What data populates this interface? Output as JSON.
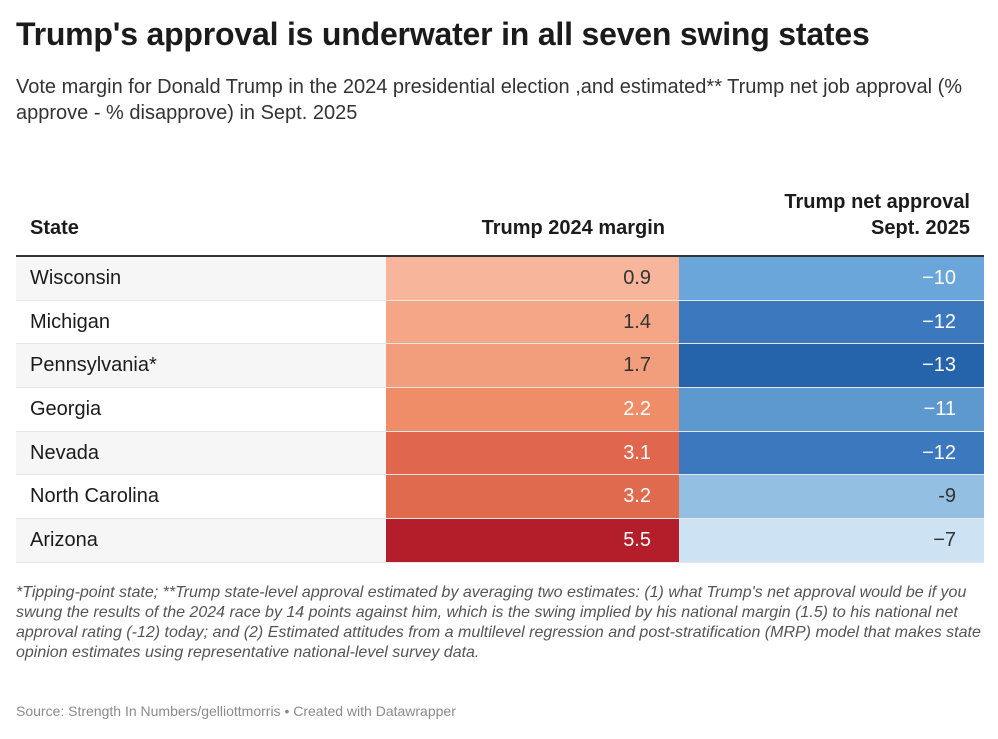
{
  "title": "Trump's approval is underwater in all seven swing states",
  "subtitle": "Vote margin for Donald Trump in the 2024 presidential election ,and estimated** Trump net job approval (% approve - % disapprove) in Sept. 2025",
  "chart_data": {
    "type": "table",
    "columns": [
      "State",
      "Trump 2024 margin",
      "Trump net approval Sept. 2025"
    ],
    "rows": [
      {
        "state": "Wisconsin",
        "margin": "0.9",
        "approval": "−10"
      },
      {
        "state": "Michigan",
        "margin": "1.4",
        "approval": "−12"
      },
      {
        "state": "Pennsylvania*",
        "margin": "1.7",
        "approval": "−13"
      },
      {
        "state": "Georgia",
        "margin": "2.2",
        "approval": "−11"
      },
      {
        "state": "Nevada",
        "margin": "3.1",
        "approval": "−12"
      },
      {
        "state": "North Carolina",
        "margin": "3.2",
        "approval": "-9"
      },
      {
        "state": "Arizona",
        "margin": "5.5",
        "approval": "−7"
      }
    ],
    "margin_values": [
      0.9,
      1.4,
      1.7,
      2.2,
      3.1,
      3.2,
      5.5
    ],
    "approval_values": [
      -10,
      -12,
      -13,
      -11,
      -12,
      -9,
      -7
    ],
    "colors": {
      "margin": [
        "#f7b69b",
        "#f4a686",
        "#f29e7d",
        "#ef8d68",
        "#e0664d",
        "#df6a4e",
        "#b41e2b"
      ],
      "margin_text": [
        "#333333",
        "#333333",
        "#333333",
        "#ffffff",
        "#ffffff",
        "#ffffff",
        "#ffffff"
      ],
      "approval": [
        "#6aa6d9",
        "#3b78bd",
        "#2563ab",
        "#5d98cf",
        "#3b78bd",
        "#93bfe3",
        "#cde2f2"
      ],
      "approval_text": [
        "#ffffff",
        "#ffffff",
        "#ffffff",
        "#ffffff",
        "#ffffff",
        "#333333",
        "#333333"
      ]
    }
  },
  "footnote": "*Tipping-point state; **Trump state-level approval estimated by averaging two estimates: (1) what Trump's net approval would be if you swung the results of the 2024 race by 14 points against him, which is the swing implied by his national margin (1.5) to his national net approval rating (-12) today; and (2) Estimated attitudes from a multilevel regression and post-stratification (MRP) model that makes state opinion estimates using representative national-level survey data.",
  "source": "Source: Strength In Numbers/gelliottmorris • Created with Datawrapper",
  "header": {
    "state": "State",
    "margin": "Trump 2024 margin",
    "approval_line1": "Trump net approval",
    "approval_line2": "Sept. 2025"
  }
}
